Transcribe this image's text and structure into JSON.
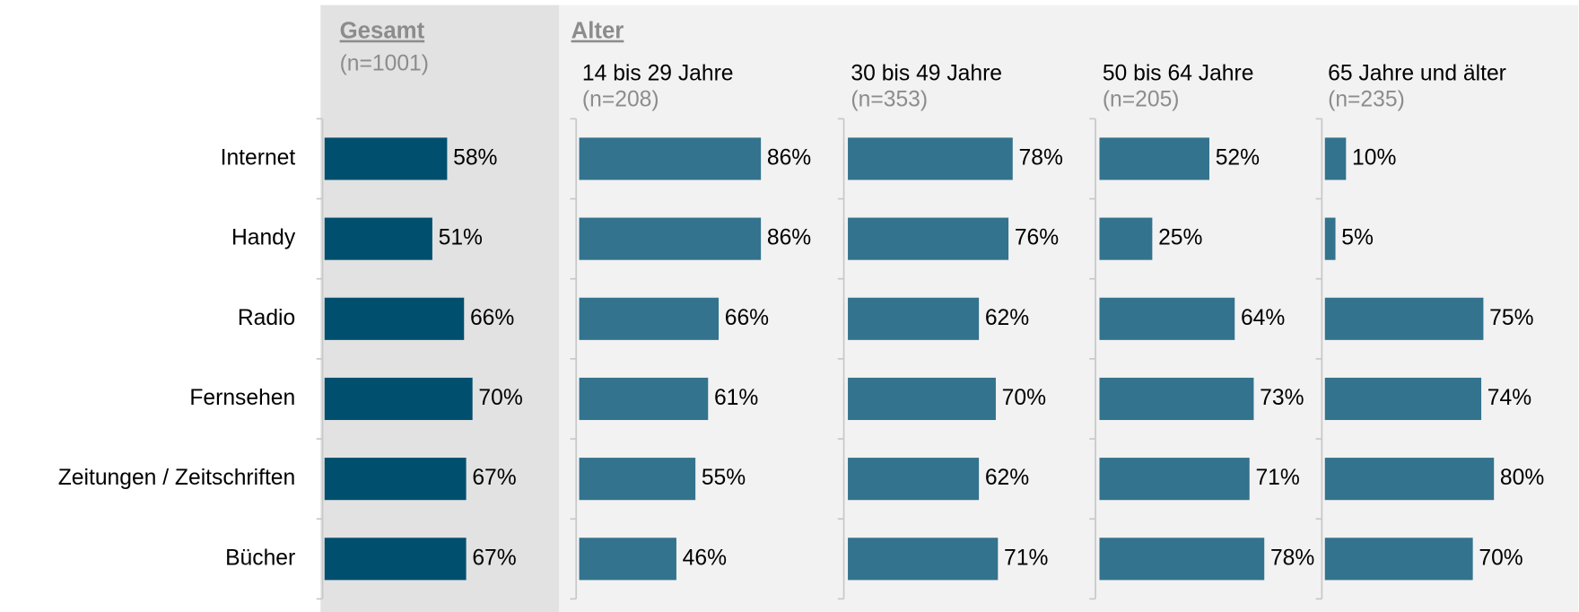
{
  "chart_data": [
    {
      "type": "bar",
      "orientation": "horizontal",
      "section": "Gesamt",
      "title": "(n=1001)",
      "categories": [
        "Internet",
        "Handy",
        "Radio",
        "Fernsehen",
        "Zeitungen / Zeitschriften",
        "Bücher"
      ],
      "values": [
        58,
        51,
        66,
        70,
        67,
        67
      ],
      "value_labels": [
        "58%",
        "51%",
        "66%",
        "70%",
        "67%",
        "67%"
      ],
      "color": "#004f6e",
      "xlim": [
        0,
        100
      ]
    },
    {
      "type": "bar",
      "orientation": "horizontal",
      "section": "Alter",
      "title": "14 bis 29 Jahre",
      "subtitle": "(n=208)",
      "values": [
        86,
        86,
        66,
        61,
        55,
        46
      ],
      "value_labels": [
        "86%",
        "86%",
        "66%",
        "61%",
        "55%",
        "46%"
      ],
      "color": "#33738d",
      "xlim": [
        0,
        100
      ]
    },
    {
      "type": "bar",
      "orientation": "horizontal",
      "title": "30 bis 49 Jahre",
      "subtitle": "(n=353)",
      "values": [
        78,
        76,
        62,
        70,
        62,
        71
      ],
      "value_labels": [
        "78%",
        "76%",
        "62%",
        "70%",
        "62%",
        "71%"
      ],
      "color": "#33738d",
      "xlim": [
        0,
        100
      ]
    },
    {
      "type": "bar",
      "orientation": "horizontal",
      "title": "50 bis 64 Jahre",
      "subtitle": "(n=205)",
      "values": [
        52,
        25,
        64,
        73,
        71,
        78
      ],
      "value_labels": [
        "52%",
        "25%",
        "64%",
        "73%",
        "71%",
        "78%"
      ],
      "color": "#33738d",
      "xlim": [
        0,
        100
      ]
    },
    {
      "type": "bar",
      "orientation": "horizontal",
      "title": "65 Jahre und älter",
      "subtitle": "(n=235)",
      "values": [
        10,
        5,
        75,
        74,
        80,
        70
      ],
      "value_labels": [
        "10%",
        "5%",
        "75%",
        "74%",
        "80%",
        "70%"
      ],
      "color": "#33738d",
      "xlim": [
        0,
        100
      ]
    }
  ]
}
